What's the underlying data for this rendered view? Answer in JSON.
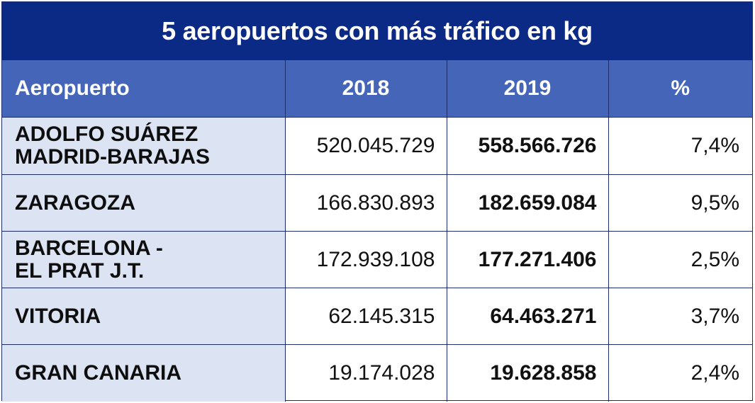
{
  "title": "5 aeropuertos con más tráfico en kg",
  "headers": [
    "Aeropuerto",
    "2018",
    "2019",
    "%"
  ],
  "rows": [
    {
      "airport_line1": "ADOLFO SUÁREZ",
      "airport_line2": "MADRID-BARAJAS",
      "y2018": "520.045.729",
      "y2019": "558.566.726",
      "pct": "7,4%"
    },
    {
      "airport_line1": "ZARAGOZA",
      "airport_line2": "",
      "y2018": "166.830.893",
      "y2019": "182.659.084",
      "pct": "9,5%"
    },
    {
      "airport_line1": "BARCELONA -",
      "airport_line2": "EL PRAT J.T.",
      "y2018": "172.939.108",
      "y2019": "177.271.406",
      "pct": "2,5%"
    },
    {
      "airport_line1": "VITORIA",
      "airport_line2": "",
      "y2018": "62.145.315",
      "y2019": "64.463.271",
      "pct": "3,7%"
    },
    {
      "airport_line1": "GRAN CANARIA",
      "airport_line2": "",
      "y2018": "19.174.028",
      "y2019": "19.628.858",
      "pct": "2,4%"
    }
  ],
  "colors": {
    "title_bg": "#0b2a86",
    "header_bg": "#4566b8",
    "first_col_bg": "#dce3f3",
    "border": "#1d2c6e"
  }
}
